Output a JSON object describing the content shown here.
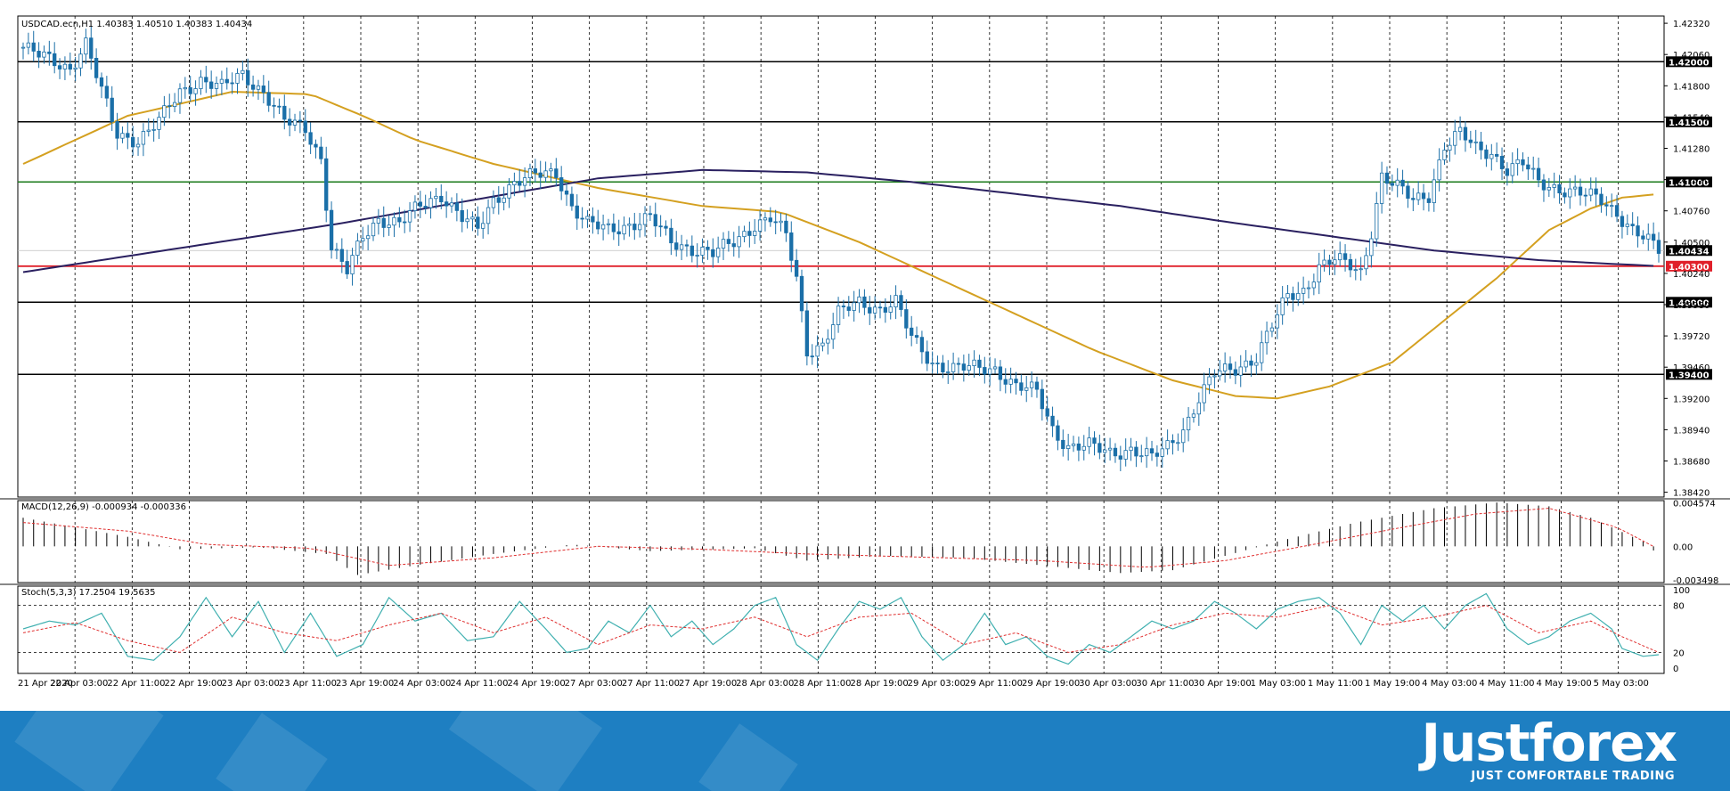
{
  "header": {
    "symbol": "USDCAD.ecn,H1",
    "ohlc": "1.40383 1.40510 1.40383 1.40434"
  },
  "branding": {
    "name": "Justforex",
    "tagline": "JUST COMFORTABLE TRADING"
  },
  "colors": {
    "bull": "#ffffff",
    "bear": "#1a6fa8",
    "candle_outline": "#1a6fa8",
    "ma_fast": "#d4a020",
    "ma_slow": "#2a2060",
    "support_red": "#e0202a",
    "level_green": "#1a7a1a",
    "macd_signal": "#e03030",
    "stoch_main": "#40b0b0",
    "stoch_signal": "#e03030",
    "banner": "#1e7fc2"
  },
  "chart_data": [
    {
      "type": "candlestick",
      "panel": "price",
      "ylim": [
        1.3838,
        1.4238
      ],
      "y_tick_labels": [
        "1.42320",
        "1.42060",
        "1.41800",
        "1.41540",
        "1.41280",
        "1.41020",
        "1.40760",
        "1.40500",
        "1.40240",
        "1.39980",
        "1.39720",
        "1.39460",
        "1.39200",
        "1.38940",
        "1.38680",
        "1.38420"
      ],
      "y_ticks": [
        1.4232,
        1.4206,
        1.418,
        1.4154,
        1.4128,
        1.4102,
        1.4076,
        1.405,
        1.4024,
        1.3998,
        1.3972,
        1.3946,
        1.392,
        1.3894,
        1.3868,
        1.3842
      ],
      "x_tick_labels": [
        "21 Apr 2020",
        "22 Apr 03:00",
        "22 Apr 11:00",
        "22 Apr 19:00",
        "23 Apr 03:00",
        "23 Apr 11:00",
        "23 Apr 19:00",
        "24 Apr 03:00",
        "24 Apr 11:00",
        "24 Apr 19:00",
        "27 Apr 03:00",
        "27 Apr 11:00",
        "27 Apr 19:00",
        "28 Apr 03:00",
        "28 Apr 11:00",
        "28 Apr 19:00",
        "29 Apr 03:00",
        "29 Apr 11:00",
        "29 Apr 19:00",
        "30 Apr 03:00",
        "30 Apr 11:00",
        "30 Apr 19:00",
        "1 May 03:00",
        "1 May 11:00",
        "1 May 19:00",
        "4 May 03:00",
        "4 May 11:00",
        "4 May 19:00",
        "5 May 03:00"
      ],
      "horizontal_levels": [
        {
          "value": 1.42,
          "label": "1.42000",
          "color": "black"
        },
        {
          "value": 1.415,
          "label": "1.41500",
          "color": "black"
        },
        {
          "value": 1.41,
          "label": "1.41000",
          "color": "green"
        },
        {
          "value": 1.4043,
          "label": "1.40434",
          "color": "current"
        },
        {
          "value": 1.403,
          "label": "1.40300",
          "color": "red"
        },
        {
          "value": 1.4,
          "label": "1.40000",
          "color": "black"
        },
        {
          "value": 1.394,
          "label": "1.39400",
          "color": "black"
        }
      ],
      "close_path": [
        [
          0,
          1.4212
        ],
        [
          3,
          1.4205
        ],
        [
          6,
          1.42
        ],
        [
          9,
          1.4195
        ],
        [
          12,
          1.4215
        ],
        [
          15,
          1.4175
        ],
        [
          18,
          1.414
        ],
        [
          22,
          1.4135
        ],
        [
          26,
          1.415
        ],
        [
          30,
          1.4175
        ],
        [
          34,
          1.4185
        ],
        [
          38,
          1.4178
        ],
        [
          42,
          1.419
        ],
        [
          46,
          1.4175
        ],
        [
          50,
          1.415
        ],
        [
          54,
          1.4145
        ],
        [
          57,
          1.412
        ],
        [
          59,
          1.4045
        ],
        [
          62,
          1.4025
        ],
        [
          65,
          1.4055
        ],
        [
          68,
          1.407
        ],
        [
          72,
          1.4065
        ],
        [
          76,
          1.408
        ],
        [
          80,
          1.409
        ],
        [
          84,
          1.407
        ],
        [
          87,
          1.406
        ],
        [
          90,
          1.4085
        ],
        [
          94,
          1.41
        ],
        [
          98,
          1.4105
        ],
        [
          102,
          1.4108
        ],
        [
          105,
          1.408
        ],
        [
          108,
          1.4065
        ],
        [
          112,
          1.406
        ],
        [
          116,
          1.4065
        ],
        [
          120,
          1.407
        ],
        [
          124,
          1.405
        ],
        [
          128,
          1.4045
        ],
        [
          132,
          1.404
        ],
        [
          136,
          1.405
        ],
        [
          140,
          1.4065
        ],
        [
          143,
          1.407
        ],
        [
          146,
          1.4055
        ],
        [
          148,
          1.402
        ],
        [
          150,
          1.396
        ],
        [
          153,
          1.3965
        ],
        [
          156,
          1.399
        ],
        [
          160,
          1.4
        ],
        [
          164,
          1.3995
        ],
        [
          167,
          1.4
        ],
        [
          170,
          1.397
        ],
        [
          174,
          1.395
        ],
        [
          178,
          1.3945
        ],
        [
          182,
          1.3945
        ],
        [
          186,
          1.3945
        ],
        [
          190,
          1.393
        ],
        [
          194,
          1.3925
        ],
        [
          197,
          1.3895
        ],
        [
          200,
          1.388
        ],
        [
          204,
          1.388
        ],
        [
          208,
          1.3875
        ],
        [
          212,
          1.3878
        ],
        [
          216,
          1.387
        ],
        [
          219,
          1.388
        ],
        [
          222,
          1.3895
        ],
        [
          225,
          1.392
        ],
        [
          228,
          1.394
        ],
        [
          232,
          1.3945
        ],
        [
          236,
          1.3955
        ],
        [
          239,
          1.398
        ],
        [
          242,
          1.4005
        ],
        [
          245,
          1.401
        ],
        [
          248,
          1.403
        ],
        [
          251,
          1.4035
        ],
        [
          254,
          1.403
        ],
        [
          256,
          1.4025
        ],
        [
          258,
          1.406
        ],
        [
          260,
          1.4105
        ],
        [
          263,
          1.4095
        ],
        [
          266,
          1.4085
        ],
        [
          269,
          1.409
        ],
        [
          272,
          1.413
        ],
        [
          275,
          1.414
        ],
        [
          278,
          1.4128
        ],
        [
          281,
          1.4125
        ],
        [
          284,
          1.411
        ],
        [
          287,
          1.4115
        ],
        [
          290,
          1.41
        ],
        [
          294,
          1.4095
        ],
        [
          298,
          1.409
        ],
        [
          302,
          1.4085
        ],
        [
          305,
          1.4075
        ],
        [
          308,
          1.406
        ],
        [
          311,
          1.405
        ],
        [
          313,
          1.4043
        ]
      ],
      "moving_averages": [
        {
          "name": "ma_fast",
          "points": [
            [
              0,
              1.4115
            ],
            [
              20,
              1.4155
            ],
            [
              40,
              1.4175
            ],
            [
              55,
              1.4173
            ],
            [
              65,
              1.4155
            ],
            [
              75,
              1.4135
            ],
            [
              90,
              1.4115
            ],
            [
              110,
              1.4095
            ],
            [
              130,
              1.408
            ],
            [
              145,
              1.4075
            ],
            [
              160,
              1.405
            ],
            [
              175,
              1.402
            ],
            [
              190,
              1.399
            ],
            [
              205,
              1.396
            ],
            [
              220,
              1.3935
            ],
            [
              232,
              1.3922
            ],
            [
              240,
              1.392
            ],
            [
              250,
              1.393
            ],
            [
              262,
              1.395
            ],
            [
              272,
              1.3985
            ],
            [
              282,
              1.402
            ],
            [
              292,
              1.406
            ],
            [
              300,
              1.4078
            ],
            [
              306,
              1.4087
            ],
            [
              313,
              1.409
            ]
          ]
        },
        {
          "name": "ma_slow",
          "points": [
            [
              0,
              1.4025
            ],
            [
              30,
              1.4045
            ],
            [
              60,
              1.4065
            ],
            [
              90,
              1.4088
            ],
            [
              110,
              1.4103
            ],
            [
              130,
              1.411
            ],
            [
              150,
              1.4108
            ],
            [
              170,
              1.41
            ],
            [
              190,
              1.409
            ],
            [
              210,
              1.408
            ],
            [
              230,
              1.4067
            ],
            [
              250,
              1.4055
            ],
            [
              270,
              1.4043
            ],
            [
              290,
              1.4035
            ],
            [
              313,
              1.403
            ]
          ]
        }
      ]
    },
    {
      "type": "macd",
      "panel": "macd",
      "label": "MACD(12,26,9) -0.000934 -0.000336",
      "y_tick_labels": [
        "0.004574",
        "0.00",
        "-0.003498"
      ],
      "y_ticks": [
        0.004574,
        0,
        -0.003498
      ],
      "ylim": [
        -0.0038,
        0.0048
      ],
      "histogram_path": [
        [
          0,
          0.003
        ],
        [
          20,
          0.001
        ],
        [
          30,
          -0.0003
        ],
        [
          45,
          -0.0001
        ],
        [
          58,
          -0.0008
        ],
        [
          64,
          -0.003
        ],
        [
          75,
          -0.002
        ],
        [
          90,
          -0.0008
        ],
        [
          105,
          0.0002
        ],
        [
          120,
          -0.0005
        ],
        [
          140,
          -0.0002
        ],
        [
          150,
          -0.0015
        ],
        [
          165,
          -0.001
        ],
        [
          180,
          -0.0012
        ],
        [
          195,
          -0.002
        ],
        [
          210,
          -0.0028
        ],
        [
          220,
          -0.0025
        ],
        [
          230,
          -0.001
        ],
        [
          240,
          0.0005
        ],
        [
          255,
          0.0025
        ],
        [
          270,
          0.004
        ],
        [
          282,
          0.0046
        ],
        [
          292,
          0.0042
        ],
        [
          300,
          0.003
        ],
        [
          310,
          0.0005
        ],
        [
          313,
          -0.0009
        ]
      ],
      "signal_path": [
        [
          0,
          0.0025
        ],
        [
          20,
          0.0016
        ],
        [
          35,
          0.0002
        ],
        [
          55,
          -0.0002
        ],
        [
          70,
          -0.002
        ],
        [
          90,
          -0.0012
        ],
        [
          110,
          0.0
        ],
        [
          130,
          -0.0003
        ],
        [
          150,
          -0.0008
        ],
        [
          170,
          -0.0011
        ],
        [
          195,
          -0.0015
        ],
        [
          215,
          -0.0022
        ],
        [
          230,
          -0.0015
        ],
        [
          245,
          0.0
        ],
        [
          262,
          0.0018
        ],
        [
          278,
          0.0034
        ],
        [
          292,
          0.004
        ],
        [
          305,
          0.002
        ],
        [
          313,
          -0.0003
        ]
      ]
    },
    {
      "type": "stochastic",
      "panel": "stoch",
      "label": "Stoch(5,3,3) 17.2504 19.5635",
      "y_tick_labels": [
        "100",
        "80",
        "20",
        "0"
      ],
      "y_ticks": [
        100,
        80,
        20,
        0
      ],
      "ylim": [
        0,
        100
      ],
      "levels": [
        80,
        20
      ],
      "main_path": [
        [
          0,
          50
        ],
        [
          5,
          60
        ],
        [
          10,
          55
        ],
        [
          15,
          70
        ],
        [
          20,
          15
        ],
        [
          25,
          10
        ],
        [
          30,
          40
        ],
        [
          35,
          90
        ],
        [
          40,
          40
        ],
        [
          45,
          85
        ],
        [
          50,
          20
        ],
        [
          55,
          70
        ],
        [
          60,
          15
        ],
        [
          65,
          30
        ],
        [
          70,
          90
        ],
        [
          75,
          60
        ],
        [
          80,
          70
        ],
        [
          85,
          35
        ],
        [
          90,
          40
        ],
        [
          95,
          85
        ],
        [
          100,
          50
        ],
        [
          104,
          20
        ],
        [
          108,
          25
        ],
        [
          112,
          60
        ],
        [
          116,
          45
        ],
        [
          120,
          80
        ],
        [
          124,
          40
        ],
        [
          128,
          60
        ],
        [
          132,
          30
        ],
        [
          136,
          50
        ],
        [
          140,
          80
        ],
        [
          144,
          90
        ],
        [
          148,
          30
        ],
        [
          152,
          10
        ],
        [
          156,
          50
        ],
        [
          160,
          85
        ],
        [
          164,
          75
        ],
        [
          168,
          90
        ],
        [
          172,
          40
        ],
        [
          176,
          10
        ],
        [
          180,
          30
        ],
        [
          184,
          70
        ],
        [
          188,
          30
        ],
        [
          192,
          40
        ],
        [
          196,
          15
        ],
        [
          200,
          5
        ],
        [
          204,
          30
        ],
        [
          208,
          20
        ],
        [
          212,
          40
        ],
        [
          216,
          60
        ],
        [
          220,
          50
        ],
        [
          224,
          60
        ],
        [
          228,
          85
        ],
        [
          232,
          70
        ],
        [
          236,
          50
        ],
        [
          240,
          75
        ],
        [
          244,
          85
        ],
        [
          248,
          90
        ],
        [
          252,
          70
        ],
        [
          256,
          30
        ],
        [
          260,
          80
        ],
        [
          264,
          60
        ],
        [
          268,
          80
        ],
        [
          272,
          50
        ],
        [
          276,
          80
        ],
        [
          280,
          95
        ],
        [
          284,
          50
        ],
        [
          288,
          30
        ],
        [
          292,
          40
        ],
        [
          296,
          60
        ],
        [
          300,
          70
        ],
        [
          304,
          50
        ],
        [
          306,
          25
        ],
        [
          310,
          15
        ],
        [
          313,
          17
        ]
      ],
      "signal_path": [
        [
          0,
          45
        ],
        [
          10,
          58
        ],
        [
          20,
          35
        ],
        [
          30,
          20
        ],
        [
          40,
          65
        ],
        [
          50,
          45
        ],
        [
          60,
          35
        ],
        [
          70,
          55
        ],
        [
          80,
          70
        ],
        [
          90,
          45
        ],
        [
          100,
          65
        ],
        [
          110,
          30
        ],
        [
          120,
          55
        ],
        [
          130,
          50
        ],
        [
          140,
          65
        ],
        [
          150,
          40
        ],
        [
          160,
          65
        ],
        [
          170,
          70
        ],
        [
          180,
          30
        ],
        [
          190,
          45
        ],
        [
          200,
          20
        ],
        [
          210,
          30
        ],
        [
          220,
          55
        ],
        [
          230,
          70
        ],
        [
          240,
          65
        ],
        [
          250,
          80
        ],
        [
          260,
          55
        ],
        [
          270,
          65
        ],
        [
          280,
          80
        ],
        [
          290,
          45
        ],
        [
          300,
          60
        ],
        [
          306,
          40
        ],
        [
          313,
          20
        ]
      ]
    }
  ]
}
